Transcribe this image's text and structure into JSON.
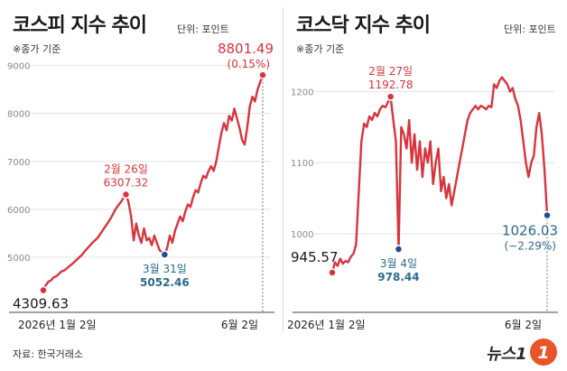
{
  "source": "자료: 한국거래소",
  "logo_text": "뉴스1",
  "logo_mark": "1",
  "colors": {
    "line": "#d8343c",
    "blue_label": "#2a6b8c",
    "blue_dot": "#1f4e96",
    "grid": "#e2e2e2",
    "axis": "#999999"
  },
  "chart_data": [
    {
      "type": "line",
      "title": "코스피 지수 추이",
      "unit": "단위: 포인트",
      "subtitle": "※종가 기준",
      "x_start_label": "2026년 1월 2일",
      "x_end_label": "6월 2일",
      "yticks": [
        5000,
        6000,
        7000,
        8000,
        9000
      ],
      "ytick_labels": [
        "5000",
        "6000",
        "7000",
        "8000",
        "9000"
      ],
      "ylim": [
        4150,
        9200
      ],
      "grid": true,
      "values": [
        4309.63,
        4420,
        4490,
        4520,
        4580,
        4600,
        4650,
        4700,
        4720,
        4760,
        4810,
        4850,
        4900,
        4950,
        5000,
        5050,
        5120,
        5180,
        5240,
        5300,
        5350,
        5400,
        5480,
        5560,
        5640,
        5720,
        5800,
        5900,
        6000,
        6080,
        6150,
        6230,
        6307.32,
        6150,
        5850,
        5350,
        5700,
        5450,
        5300,
        5600,
        5350,
        5400,
        5250,
        5450,
        5300,
        5150,
        5100,
        5052.46,
        5200,
        5450,
        5300,
        5550,
        5700,
        5850,
        5750,
        5950,
        6100,
        6050,
        6250,
        6400,
        6350,
        6550,
        6700,
        6650,
        6800,
        6900,
        6800,
        7000,
        7300,
        7600,
        7800,
        7650,
        7950,
        7850,
        8100,
        7900,
        7700,
        7450,
        7350,
        7700,
        8150,
        8350,
        8250,
        8500,
        8650,
        8801.49
      ],
      "annotations": [
        {
          "index": 0,
          "value_label": "4309.63",
          "color": "dark"
        },
        {
          "index": 32,
          "date_label": "2월 26일",
          "value_label": "6307.32",
          "color": "red"
        },
        {
          "index": 47,
          "date_label": "3월 31일",
          "value_label": "5052.46",
          "color": "blue"
        },
        {
          "index": 85,
          "value_label": "8801.49",
          "change_label": "(0.15%)",
          "color": "red"
        }
      ]
    },
    {
      "type": "line",
      "title": "코스닥 지수 추이",
      "unit": "단위: 포인트",
      "subtitle": "※종가 기준",
      "x_start_label": "2026년 1월 2일",
      "x_end_label": "6월 2일",
      "yticks": [
        1000,
        1100,
        1200
      ],
      "ytick_labels": [
        "1000",
        "1100",
        "1200"
      ],
      "ylim": [
        910,
        1250
      ],
      "grid": true,
      "values": [
        945.57,
        960,
        955,
        965,
        958,
        962,
        960,
        968,
        972,
        985,
        1060,
        1130,
        1155,
        1150,
        1165,
        1160,
        1170,
        1165,
        1175,
        1180,
        1178,
        1185,
        1192.78,
        1160,
        1130,
        978.44,
        1150,
        1140,
        1120,
        1160,
        1100,
        1140,
        1090,
        1130,
        1080,
        1120,
        1100,
        1130,
        1070,
        1100,
        1120,
        1060,
        1080,
        1050,
        1070,
        1040,
        1060,
        1080,
        1100,
        1120,
        1140,
        1160,
        1170,
        1175,
        1180,
        1175,
        1180,
        1178,
        1175,
        1180,
        1178,
        1210,
        1205,
        1215,
        1220,
        1215,
        1210,
        1200,
        1205,
        1190,
        1180,
        1160,
        1130,
        1100,
        1080,
        1100,
        1110,
        1150,
        1170,
        1140,
        1090,
        1026.03
      ],
      "annotations": [
        {
          "index": 0,
          "value_label": "945.57",
          "color": "dark"
        },
        {
          "index": 22,
          "date_label": "2월 27일",
          "value_label": "1192.78",
          "color": "red"
        },
        {
          "index": 25,
          "date_label": "3월 4일",
          "value_label": "978.44",
          "color": "blue"
        },
        {
          "index": 81,
          "value_label": "1026.03",
          "change_label": "(−2.29%)",
          "color": "blue"
        }
      ]
    }
  ]
}
